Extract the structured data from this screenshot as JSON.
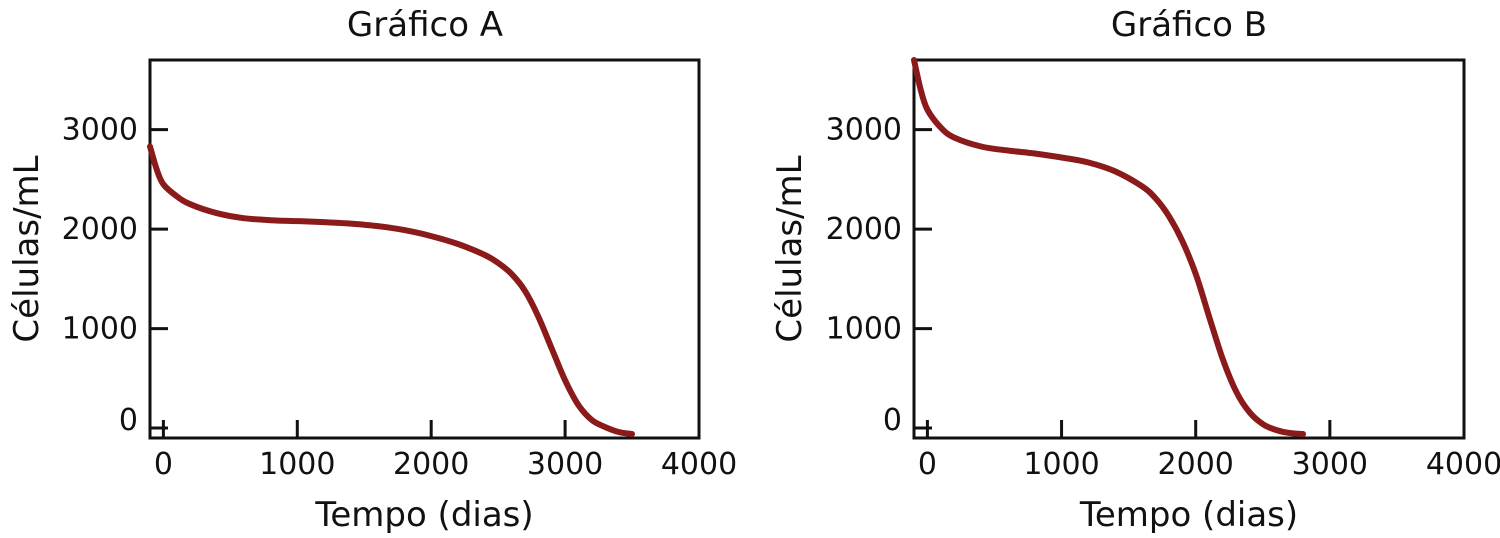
{
  "colors": {
    "curve": "#8B1A1A",
    "axis": "#111111"
  },
  "chart_data": [
    {
      "type": "line",
      "title": "Gráfico A",
      "xlabel": "Tempo (dias)",
      "ylabel": "Células/mL",
      "xlim": [
        -100,
        4000
      ],
      "ylim": [
        -100,
        3700
      ],
      "x_ticks": [
        0,
        1000,
        2000,
        3000,
        4000
      ],
      "x_tick_labels": [
        "0",
        "1000",
        "2000",
        "3000",
        "4000"
      ],
      "y_ticks": [
        0,
        1000,
        2000,
        3000
      ],
      "y_tick_labels": [
        "0",
        "1000",
        "2000",
        "3000"
      ],
      "grid": false,
      "series": [
        {
          "x": [
            -100,
            -50,
            0,
            100,
            200,
            400,
            600,
            800,
            1000,
            1200,
            1400,
            1600,
            1800,
            2000,
            2200,
            2400,
            2500,
            2600,
            2700,
            2800,
            2900,
            3000,
            3100,
            3200,
            3300,
            3400,
            3500
          ],
          "y": [
            2830,
            2600,
            2450,
            2330,
            2250,
            2160,
            2110,
            2090,
            2080,
            2070,
            2055,
            2030,
            1990,
            1930,
            1850,
            1740,
            1660,
            1550,
            1380,
            1120,
            800,
            480,
            230,
            80,
            10,
            -40,
            -60
          ]
        }
      ]
    },
    {
      "type": "line",
      "title": "Gráfico B",
      "xlabel": "Tempo (dias)",
      "ylabel": "Células/mL",
      "xlim": [
        -100,
        4000
      ],
      "ylim": [
        -100,
        3700
      ],
      "x_ticks": [
        0,
        1000,
        2000,
        3000,
        4000
      ],
      "x_tick_labels": [
        "0",
        "1000",
        "2000",
        "3000",
        "4000"
      ],
      "y_ticks": [
        0,
        1000,
        2000,
        3000
      ],
      "y_tick_labels": [
        "0",
        "1000",
        "2000",
        "3000"
      ],
      "grid": false,
      "series": [
        {
          "x": [
            -100,
            -50,
            0,
            100,
            200,
            400,
            600,
            800,
            1000,
            1200,
            1400,
            1600,
            1700,
            1800,
            1900,
            2000,
            2100,
            2200,
            2300,
            2400,
            2500,
            2600,
            2700,
            2800
          ],
          "y": [
            3700,
            3400,
            3200,
            3020,
            2920,
            2830,
            2790,
            2760,
            2720,
            2670,
            2580,
            2430,
            2310,
            2130,
            1880,
            1550,
            1120,
            700,
            370,
            160,
            40,
            -20,
            -50,
            -60
          ]
        }
      ]
    }
  ]
}
